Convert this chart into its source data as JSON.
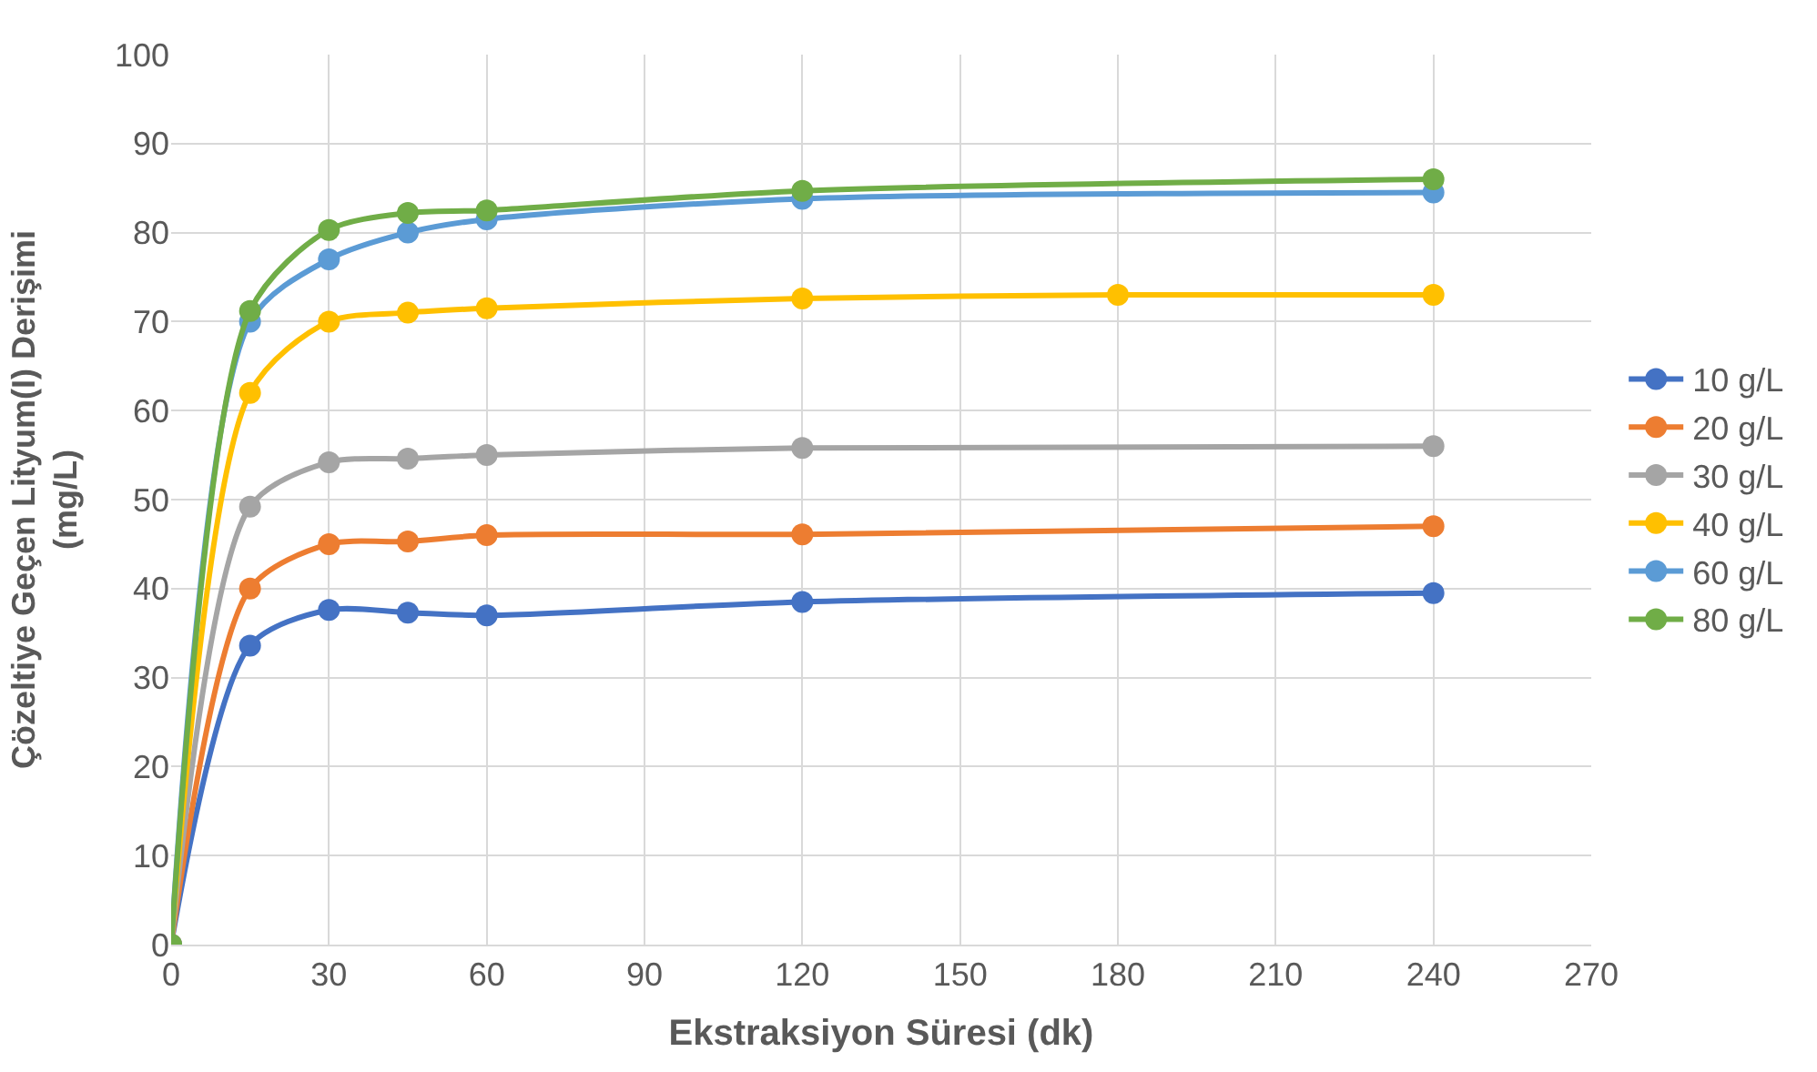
{
  "chart_data": {
    "type": "line",
    "xlabel": "Ekstraksiyon Süresi (dk)",
    "ylabel": "Çözeltiye Geçen Lityum(I) Derişimi (mg/L)",
    "xlim": [
      0,
      270
    ],
    "xticks": [
      0,
      30,
      60,
      90,
      120,
      150,
      180,
      210,
      240,
      270
    ],
    "ylim": [
      0,
      100
    ],
    "yticks": [
      0,
      10,
      20,
      30,
      40,
      50,
      60,
      70,
      80,
      90,
      100
    ],
    "grid": true,
    "legend": "right",
    "marker": "circle",
    "line_style": "solid",
    "series": [
      {
        "name": "10 g/L",
        "color": "#4472c4",
        "x": [
          0,
          15,
          30,
          45,
          60,
          120,
          240
        ],
        "values": [
          0,
          33.6,
          37.6,
          37.3,
          37.0,
          38.5,
          39.5
        ]
      },
      {
        "name": "20 g/L",
        "color": "#ed7d31",
        "x": [
          0,
          15,
          30,
          45,
          60,
          120,
          240
        ],
        "values": [
          0,
          40,
          45,
          45.3,
          46,
          46.1,
          47
        ]
      },
      {
        "name": "30 g/L",
        "color": "#a5a5a5",
        "x": [
          0,
          15,
          30,
          45,
          60,
          120,
          240
        ],
        "values": [
          0,
          49.2,
          54.2,
          54.6,
          55,
          55.8,
          56
        ]
      },
      {
        "name": "40 g/L",
        "color": "#ffc000",
        "x": [
          0,
          15,
          30,
          45,
          60,
          120,
          180,
          240
        ],
        "values": [
          0,
          62,
          70,
          71,
          71.5,
          72.6,
          73,
          73
        ]
      },
      {
        "name": "60 g/L",
        "color": "#5b9bd5",
        "x": [
          0,
          15,
          30,
          45,
          60,
          120,
          240
        ],
        "values": [
          0,
          70,
          77,
          80,
          81.5,
          83.8,
          84.5
        ]
      },
      {
        "name": "80 g/L",
        "color": "#70ad47",
        "x": [
          0,
          15,
          30,
          45,
          60,
          120,
          240
        ],
        "values": [
          0,
          71.2,
          80.3,
          82.2,
          82.5,
          84.7,
          86
        ]
      }
    ]
  }
}
